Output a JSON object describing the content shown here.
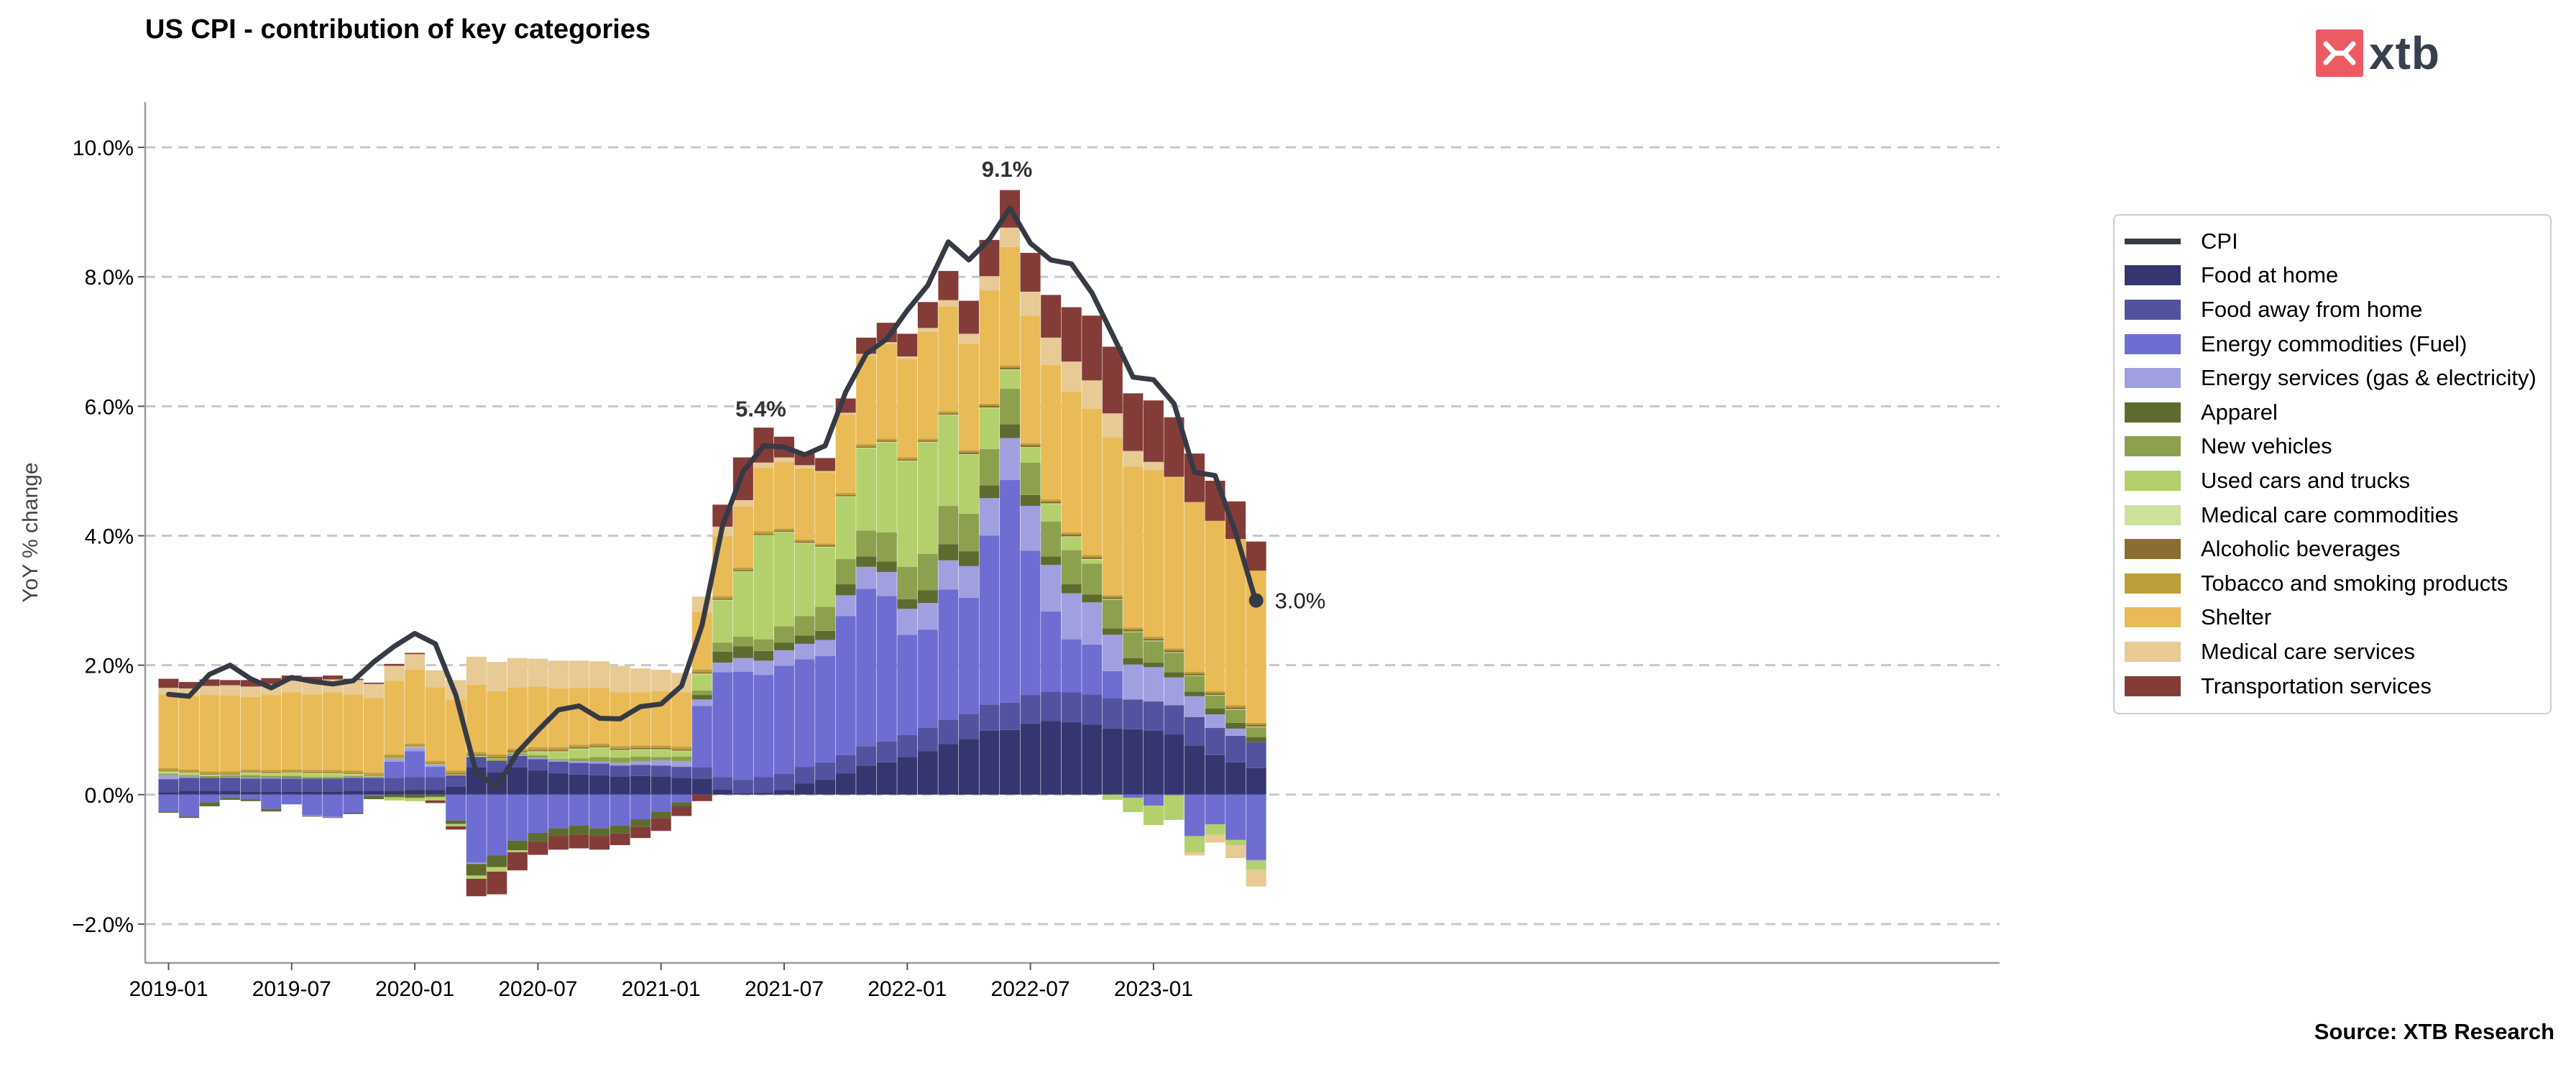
{
  "header": {
    "title": "US CPI - contribution of key categories"
  },
  "brand": {
    "name": "xtb",
    "mark_color": "#ec5b63"
  },
  "footer": {
    "source": "Source: XTB Research"
  },
  "chart_data": {
    "type": "bar",
    "stacked": true,
    "title": "US CPI - contribution of key categories",
    "xlabel": "",
    "ylabel": "YoY % change",
    "ylim": [
      -2.6,
      10.7
    ],
    "yticks": [
      -2.0,
      0.0,
      2.0,
      4.0,
      6.0,
      8.0,
      10.0
    ],
    "ytick_labels": [
      "−2.0%",
      "0.0%",
      "2.0%",
      "4.0%",
      "6.0%",
      "8.0%",
      "10.0%"
    ],
    "xticks": [
      "2019-01",
      "2019-07",
      "2020-01",
      "2020-07",
      "2021-01",
      "2021-07",
      "2022-01",
      "2022-07",
      "2023-01"
    ],
    "grid": "horizontal dashed",
    "legend_position": "right",
    "categories": [
      "2019-01",
      "2019-02",
      "2019-03",
      "2019-04",
      "2019-05",
      "2019-06",
      "2019-07",
      "2019-08",
      "2019-09",
      "2019-10",
      "2019-11",
      "2019-12",
      "2020-01",
      "2020-02",
      "2020-03",
      "2020-04",
      "2020-05",
      "2020-06",
      "2020-07",
      "2020-08",
      "2020-09",
      "2020-10",
      "2020-11",
      "2020-12",
      "2021-01",
      "2021-02",
      "2021-03",
      "2021-04",
      "2021-05",
      "2021-06",
      "2021-07",
      "2021-08",
      "2021-09",
      "2021-10",
      "2021-11",
      "2021-12",
      "2022-01",
      "2022-02",
      "2022-03",
      "2022-04",
      "2022-05",
      "2022-06",
      "2022-07",
      "2022-08",
      "2022-09",
      "2022-10",
      "2022-11",
      "2022-12",
      "2023-01",
      "2023-02",
      "2023-03",
      "2023-04",
      "2023-05",
      "2023-06"
    ],
    "line": {
      "name": "CPI",
      "color": "#363a45",
      "values": [
        1.55,
        1.52,
        1.86,
        2.0,
        1.79,
        1.65,
        1.81,
        1.75,
        1.71,
        1.76,
        2.05,
        2.29,
        2.49,
        2.33,
        1.54,
        0.33,
        0.12,
        0.65,
        0.99,
        1.31,
        1.37,
        1.18,
        1.17,
        1.36,
        1.4,
        1.68,
        2.62,
        4.16,
        4.99,
        5.39,
        5.37,
        5.25,
        5.39,
        6.22,
        6.81,
        7.04,
        7.48,
        7.87,
        8.54,
        8.26,
        8.58,
        9.06,
        8.52,
        8.26,
        8.2,
        7.75,
        7.11,
        6.45,
        6.41,
        6.04,
        4.98,
        4.93,
        4.05,
        2.97
      ]
    },
    "annotations": [
      {
        "x": "2021-06",
        "y": 5.4,
        "text": "5.4%"
      },
      {
        "x": "2022-06",
        "y": 9.1,
        "text": "9.1%"
      },
      {
        "x": "2023-06",
        "y": 3.0,
        "text": "3.0%"
      }
    ],
    "series": [
      {
        "name": "Food at home",
        "color": "#353570",
        "values": [
          0.04,
          0.06,
          0.06,
          0.06,
          0.05,
          0.05,
          0.05,
          0.05,
          0.05,
          0.06,
          0.06,
          0.06,
          0.07,
          0.07,
          0.12,
          0.42,
          0.35,
          0.42,
          0.37,
          0.33,
          0.31,
          0.3,
          0.28,
          0.29,
          0.28,
          0.26,
          0.25,
          0.08,
          0.02,
          0.03,
          0.07,
          0.17,
          0.23,
          0.33,
          0.45,
          0.5,
          0.58,
          0.67,
          0.78,
          0.86,
          0.99,
          1.0,
          1.1,
          1.14,
          1.12,
          1.08,
          1.02,
          1.01,
          0.99,
          0.93,
          0.76,
          0.61,
          0.5,
          0.41
        ]
      },
      {
        "name": "Food away from home",
        "color": "#5252a0",
        "values": [
          0.2,
          0.2,
          0.2,
          0.2,
          0.2,
          0.2,
          0.2,
          0.2,
          0.2,
          0.2,
          0.2,
          0.2,
          0.2,
          0.2,
          0.18,
          0.16,
          0.17,
          0.18,
          0.18,
          0.18,
          0.18,
          0.18,
          0.17,
          0.17,
          0.17,
          0.17,
          0.17,
          0.19,
          0.21,
          0.24,
          0.25,
          0.26,
          0.27,
          0.28,
          0.3,
          0.32,
          0.34,
          0.36,
          0.38,
          0.39,
          0.4,
          0.42,
          0.44,
          0.45,
          0.46,
          0.47,
          0.47,
          0.46,
          0.45,
          0.45,
          0.44,
          0.42,
          0.41,
          0.4
        ]
      },
      {
        "name": "Energy commodities (Fuel)",
        "color": "#6d6dd2",
        "values": [
          -0.26,
          -0.34,
          -0.12,
          -0.05,
          -0.07,
          -0.22,
          -0.15,
          -0.32,
          -0.34,
          -0.28,
          -0.02,
          0.25,
          0.4,
          0.16,
          -0.4,
          -1.05,
          -0.94,
          -0.71,
          -0.59,
          -0.52,
          -0.48,
          -0.52,
          -0.48,
          -0.38,
          -0.26,
          -0.12,
          0.95,
          1.62,
          1.67,
          1.58,
          1.67,
          1.66,
          1.64,
          2.15,
          2.43,
          2.25,
          1.55,
          1.52,
          2.01,
          1.79,
          2.61,
          3.44,
          2.23,
          1.24,
          0.82,
          0.77,
          0.42,
          -0.05,
          -0.17,
          -0.01,
          -0.64,
          -0.46,
          -0.7,
          -1.01
        ]
      },
      {
        "name": "Energy services (gas & electricity)",
        "color": "#a0a0e0",
        "values": [
          0.06,
          0.02,
          0.0,
          0.01,
          0.01,
          0.01,
          0.01,
          -0.01,
          -0.01,
          0.01,
          0.01,
          0.04,
          0.06,
          0.03,
          0.0,
          -0.02,
          0.0,
          0.01,
          0.02,
          0.02,
          0.03,
          0.03,
          0.04,
          0.05,
          0.08,
          0.09,
          0.1,
          0.15,
          0.21,
          0.22,
          0.24,
          0.24,
          0.25,
          0.32,
          0.34,
          0.37,
          0.4,
          0.41,
          0.45,
          0.49,
          0.58,
          0.65,
          0.69,
          0.72,
          0.71,
          0.65,
          0.56,
          0.54,
          0.53,
          0.43,
          0.32,
          0.21,
          0.11,
          -0.01
        ]
      },
      {
        "name": "Apparel",
        "color": "#5e6b2e",
        "values": [
          -0.02,
          -0.02,
          -0.06,
          -0.03,
          -0.03,
          -0.04,
          0.01,
          -0.01,
          -0.01,
          -0.02,
          -0.05,
          -0.04,
          -0.05,
          -0.03,
          -0.05,
          -0.18,
          -0.18,
          -0.15,
          -0.14,
          -0.12,
          -0.14,
          -0.12,
          -0.12,
          -0.12,
          -0.1,
          -0.06,
          0.07,
          0.17,
          0.18,
          0.15,
          0.12,
          0.13,
          0.14,
          0.17,
          0.16,
          0.16,
          0.15,
          0.2,
          0.25,
          0.23,
          0.2,
          0.21,
          0.17,
          0.13,
          0.14,
          0.12,
          0.1,
          0.1,
          0.07,
          0.08,
          0.07,
          0.09,
          0.09,
          0.08
        ]
      },
      {
        "name": "New vehicles",
        "color": "#8ca04e",
        "values": [
          0.02,
          0.02,
          0.03,
          0.03,
          0.04,
          0.03,
          0.02,
          0.02,
          0.02,
          0.02,
          0.01,
          0.01,
          0.0,
          -0.01,
          -0.01,
          0.01,
          0.03,
          0.03,
          0.04,
          0.02,
          0.04,
          0.07,
          0.08,
          0.08,
          0.05,
          0.07,
          0.07,
          0.14,
          0.15,
          0.18,
          0.25,
          0.3,
          0.37,
          0.39,
          0.4,
          0.45,
          0.5,
          0.56,
          0.59,
          0.58,
          0.56,
          0.55,
          0.5,
          0.54,
          0.53,
          0.48,
          0.44,
          0.4,
          0.33,
          0.3,
          0.24,
          0.2,
          0.2,
          0.15
        ]
      },
      {
        "name": "Used cars and trucks",
        "color": "#b4d06c",
        "values": [
          0.03,
          0.03,
          0.01,
          0.0,
          0.03,
          0.03,
          0.04,
          0.05,
          0.05,
          0.02,
          0.0,
          -0.05,
          -0.05,
          -0.05,
          -0.03,
          -0.05,
          -0.07,
          -0.03,
          0.05,
          0.11,
          0.14,
          0.14,
          0.11,
          0.1,
          0.11,
          0.08,
          0.25,
          0.65,
          1.0,
          1.6,
          1.45,
          1.12,
          0.92,
          0.96,
          1.27,
          1.39,
          1.63,
          1.72,
          1.4,
          0.91,
          0.63,
          0.29,
          0.23,
          0.27,
          0.2,
          0.06,
          -0.08,
          -0.22,
          -0.3,
          -0.38,
          -0.25,
          -0.16,
          -0.08,
          -0.14
        ]
      },
      {
        "name": "Medical care commodities",
        "color": "#cde09c",
        "values": [
          0.01,
          0.01,
          0.01,
          0.01,
          0.01,
          0.01,
          0.01,
          0.01,
          0.01,
          0.01,
          0.01,
          0.01,
          0.01,
          0.01,
          0.01,
          0.01,
          0.01,
          0.01,
          0.01,
          0.01,
          0.01,
          0.01,
          0.01,
          0.01,
          0.01,
          0.01,
          0.01,
          0.01,
          0.01,
          0.01,
          0.01,
          0.01,
          0.01,
          0.01,
          0.01,
          0.01,
          0.01,
          0.01,
          0.01,
          0.01,
          0.01,
          0.01,
          0.01,
          0.01,
          0.01,
          0.01,
          0.01,
          0.01,
          0.01,
          0.01,
          0.01,
          0.01,
          0.01,
          0.01
        ]
      },
      {
        "name": "Alcoholic beverages",
        "color": "#8c6d31",
        "values": [
          0.01,
          0.01,
          0.01,
          0.01,
          0.01,
          0.01,
          0.01,
          0.01,
          0.01,
          0.01,
          0.01,
          0.01,
          0.01,
          0.01,
          0.02,
          0.02,
          0.02,
          0.02,
          0.02,
          0.02,
          0.02,
          0.02,
          0.02,
          0.02,
          0.02,
          0.02,
          0.02,
          0.02,
          0.02,
          0.02,
          0.02,
          0.02,
          0.02,
          0.02,
          0.02,
          0.02,
          0.02,
          0.02,
          0.02,
          0.03,
          0.03,
          0.03,
          0.03,
          0.03,
          0.03,
          0.03,
          0.03,
          0.03,
          0.03,
          0.03,
          0.03,
          0.03,
          0.03,
          0.03
        ]
      },
      {
        "name": "Tobacco and smoking products",
        "color": "#bd9e39",
        "values": [
          0.04,
          0.04,
          0.04,
          0.04,
          0.04,
          0.04,
          0.04,
          0.04,
          0.04,
          0.04,
          0.04,
          0.04,
          0.04,
          0.04,
          0.04,
          0.04,
          0.04,
          0.04,
          0.04,
          0.04,
          0.04,
          0.04,
          0.04,
          0.04,
          0.04,
          0.04,
          0.04,
          0.04,
          0.04,
          0.04,
          0.03,
          0.03,
          0.03,
          0.03,
          0.03,
          0.03,
          0.03,
          0.03,
          0.03,
          0.03,
          0.03,
          0.03,
          0.03,
          0.03,
          0.03,
          0.03,
          0.03,
          0.03,
          0.03,
          0.03,
          0.03,
          0.03,
          0.03,
          0.03
        ]
      },
      {
        "name": "Shelter",
        "color": "#e8bb56",
        "values": [
          1.14,
          1.13,
          1.18,
          1.17,
          1.12,
          1.16,
          1.19,
          1.17,
          1.2,
          1.18,
          1.15,
          1.14,
          1.14,
          1.14,
          1.1,
          1.04,
          0.98,
          0.95,
          0.94,
          0.91,
          0.88,
          0.86,
          0.83,
          0.82,
          0.84,
          0.84,
          0.89,
          0.92,
          0.94,
          0.98,
          1.03,
          1.1,
          1.1,
          1.21,
          1.37,
          1.46,
          1.52,
          1.65,
          1.62,
          1.64,
          1.75,
          1.83,
          1.97,
          2.08,
          2.17,
          2.26,
          2.44,
          2.49,
          2.58,
          2.64,
          2.62,
          2.63,
          2.57,
          2.35
        ]
      },
      {
        "name": "Medical care services",
        "color": "#e7ca94",
        "values": [
          0.1,
          0.12,
          0.14,
          0.16,
          0.16,
          0.17,
          0.18,
          0.19,
          0.2,
          0.22,
          0.22,
          0.23,
          0.24,
          0.26,
          0.3,
          0.43,
          0.45,
          0.45,
          0.43,
          0.43,
          0.42,
          0.41,
          0.41,
          0.37,
          0.33,
          0.3,
          0.24,
          0.15,
          0.1,
          0.08,
          0.07,
          0.05,
          0.02,
          0.03,
          0.03,
          0.03,
          0.04,
          0.06,
          0.1,
          0.16,
          0.22,
          0.3,
          0.37,
          0.42,
          0.47,
          0.44,
          0.37,
          0.24,
          0.12,
          0.01,
          -0.05,
          -0.12,
          -0.2,
          -0.26
        ]
      },
      {
        "name": "Transportation services",
        "color": "#843c39",
        "values": [
          0.14,
          0.1,
          0.1,
          0.08,
          0.1,
          0.09,
          0.08,
          0.08,
          0.06,
          0.02,
          0.02,
          0.03,
          0.02,
          -0.04,
          -0.05,
          -0.27,
          -0.35,
          -0.28,
          -0.2,
          -0.21,
          -0.21,
          -0.21,
          -0.18,
          -0.17,
          -0.2,
          -0.15,
          -0.1,
          0.34,
          0.66,
          0.54,
          0.32,
          0.18,
          0.2,
          0.22,
          0.25,
          0.3,
          0.35,
          0.4,
          0.45,
          0.51,
          0.56,
          0.58,
          0.6,
          0.66,
          0.84,
          1.0,
          1.03,
          0.89,
          0.95,
          0.92,
          0.75,
          0.62,
          0.58,
          0.45
        ]
      }
    ]
  }
}
